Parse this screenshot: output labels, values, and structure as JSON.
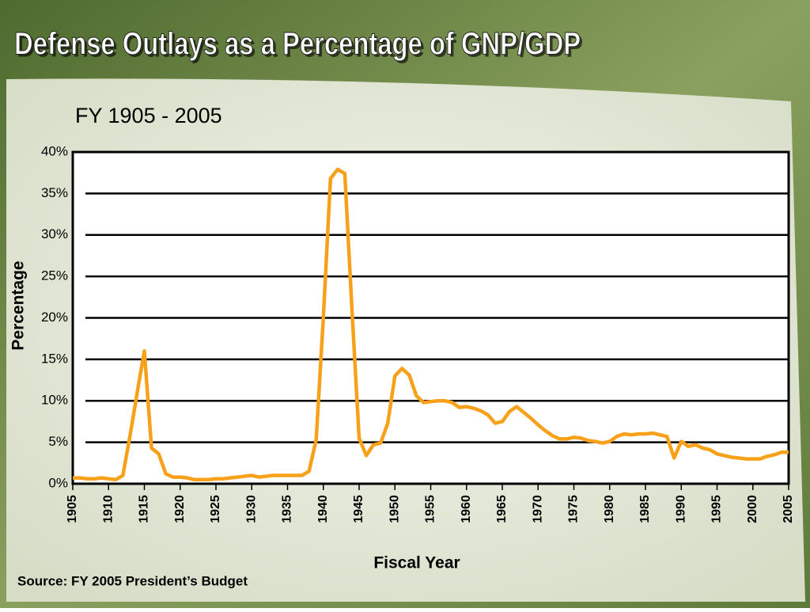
{
  "chart_data": {
    "type": "line",
    "title": "Defense Outlays as a Percentage of GNP/GDP",
    "subtitle": "FY 1905 - 2005",
    "x_label": "Fiscal Year",
    "y_label": "Percentage",
    "source": "Source: FY 2005 President’s Budget",
    "xlim": [
      1905,
      2005
    ],
    "xticks": [
      1905,
      1910,
      1915,
      1920,
      1925,
      1930,
      1935,
      1940,
      1945,
      1950,
      1955,
      1960,
      1965,
      1970,
      1975,
      1980,
      1985,
      1990,
      1995,
      2000,
      2005
    ],
    "ylim": [
      0,
      40
    ],
    "yticks": [
      {
        "value": 0,
        "label": "0%"
      },
      {
        "value": 5,
        "label": "5%"
      },
      {
        "value": 10,
        "label": "10%"
      },
      {
        "value": 15,
        "label": "15%"
      },
      {
        "value": 20,
        "label": "20%"
      },
      {
        "value": 25,
        "label": "25%"
      },
      {
        "value": 30,
        "label": "30%"
      },
      {
        "value": 35,
        "label": "35%"
      },
      {
        "value": 40,
        "label": "40%"
      }
    ],
    "grid": true,
    "x": [
      1905,
      1906,
      1907,
      1908,
      1909,
      1910,
      1911,
      1912,
      1913,
      1914,
      1915,
      1916,
      1917,
      1918,
      1919,
      1920,
      1921,
      1922,
      1923,
      1924,
      1925,
      1926,
      1927,
      1928,
      1929,
      1930,
      1931,
      1932,
      1933,
      1934,
      1935,
      1936,
      1937,
      1938,
      1939,
      1940,
      1941,
      1942,
      1943,
      1944,
      1945,
      1946,
      1947,
      1948,
      1949,
      1950,
      1951,
      1952,
      1953,
      1954,
      1955,
      1956,
      1957,
      1958,
      1959,
      1960,
      1961,
      1962,
      1963,
      1964,
      1965,
      1966,
      1967,
      1968,
      1969,
      1970,
      1971,
      1972,
      1973,
      1974,
      1975,
      1976,
      1977,
      1978,
      1979,
      1980,
      1981,
      1982,
      1983,
      1984,
      1985,
      1986,
      1987,
      1988,
      1989,
      1990,
      1991,
      1992,
      1993,
      1994,
      1995,
      1996,
      1997,
      1998,
      1999,
      2000,
      2001,
      2002,
      2003,
      2004,
      2005
    ],
    "series": [
      {
        "color": "#f7a11a",
        "values": [
          0.7,
          0.7,
          0.6,
          0.6,
          0.7,
          0.6,
          0.5,
          1.0,
          5.8,
          11,
          16,
          4.3,
          3.6,
          1.2,
          0.8,
          0.8,
          0.7,
          0.5,
          0.5,
          0.5,
          0.6,
          0.6,
          0.7,
          0.8,
          0.9,
          1.0,
          0.8,
          0.9,
          1.0,
          1.0,
          1.0,
          1.0,
          1.0,
          1.5,
          5.3,
          20,
          36.8,
          37.9,
          37.4,
          21,
          5.5,
          3.4,
          4.7,
          4.9,
          7.3,
          13,
          13.9,
          13.1,
          10.6,
          9.8,
          9.9,
          10,
          10,
          9.8,
          9.2,
          9.3,
          9.1,
          8.8,
          8.3,
          7.3,
          7.5,
          8.7,
          9.3,
          8.6,
          7.9,
          7.1,
          6.4,
          5.8,
          5.4,
          5.4,
          5.6,
          5.5,
          5.2,
          5.1,
          4.9,
          5.1,
          5.7,
          6.0,
          5.9,
          6.0,
          6.0,
          6.1,
          5.9,
          5.7,
          3.1,
          5.1,
          4.5,
          4.7,
          4.3,
          4.1,
          3.6,
          3.4,
          3.2,
          3.1,
          3.0,
          3.0,
          3.0,
          3.3,
          3.5,
          3.8,
          3.8
        ]
      }
    ]
  }
}
